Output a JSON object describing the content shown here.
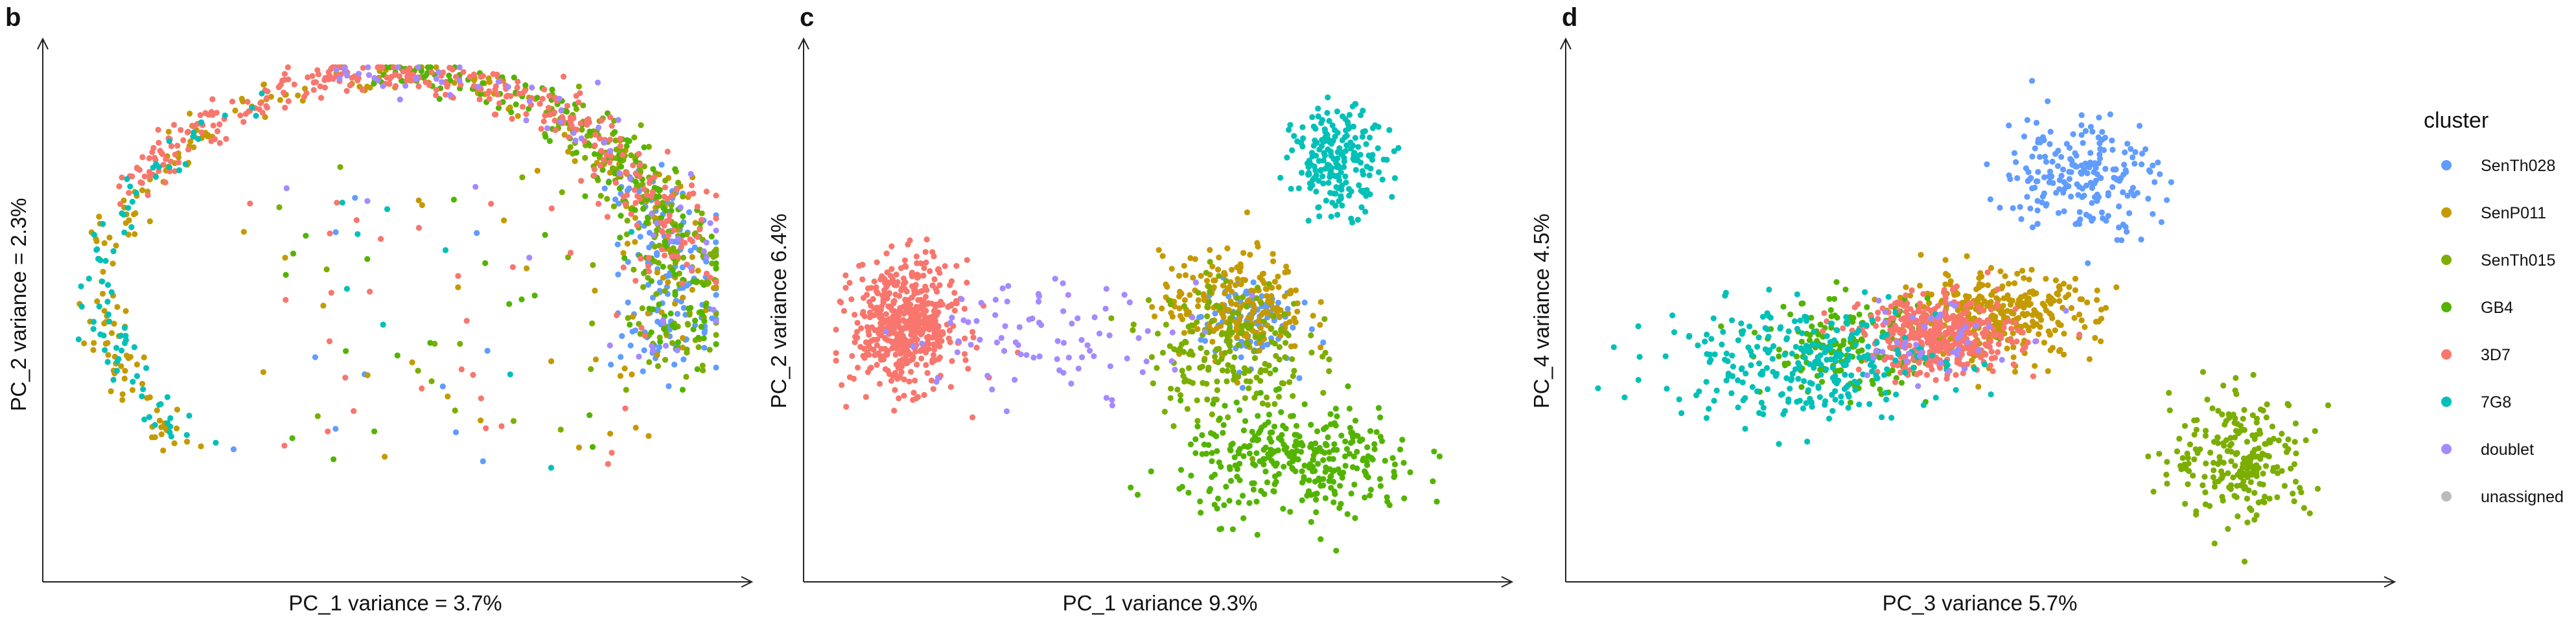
{
  "chart_data": [
    {
      "panel": "b",
      "type": "scatter",
      "xlabel": "PC_1 variance = 3.7%",
      "ylabel": "PC_2 variance = 2.3%",
      "xlim": [
        0,
        100
      ],
      "ylim": [
        0,
        100
      ],
      "shape": "arc",
      "series": [
        {
          "name": "SenTh028",
          "center": [
            88,
            60
          ],
          "spread": [
            5,
            9
          ],
          "n": 160
        },
        {
          "name": "SenP011",
          "center": [
            50,
            35
          ],
          "spread": [
            30,
            25
          ],
          "n": 260
        },
        {
          "name": "SenTh015",
          "center": [
            82,
            55
          ],
          "spread": [
            10,
            15
          ],
          "n": 220
        },
        {
          "name": "GB4",
          "center": [
            75,
            50
          ],
          "spread": [
            18,
            20
          ],
          "n": 200
        },
        {
          "name": "3D7",
          "center": [
            45,
            18
          ],
          "spread": [
            25,
            12
          ],
          "n": 380
        },
        {
          "name": "7G8",
          "center": [
            20,
            60
          ],
          "spread": [
            10,
            20
          ],
          "n": 90
        },
        {
          "name": "doublet",
          "center": [
            80,
            50
          ],
          "spread": [
            15,
            20
          ],
          "n": 70
        }
      ]
    },
    {
      "panel": "c",
      "type": "scatter",
      "xlabel": "PC_1 variance 9.3%",
      "ylabel": "PC_2 variance 6.4%",
      "xlim": [
        0,
        100
      ],
      "ylim": [
        0,
        100
      ],
      "series": [
        {
          "name": "SenTh028",
          "center": [
            63,
            49
          ],
          "spread": [
            3.5,
            4.5
          ],
          "n": 110
        },
        {
          "name": "SenP011",
          "center": [
            61,
            52
          ],
          "spread": [
            5.5,
            5
          ],
          "n": 230
        },
        {
          "name": "SenTh015",
          "center": [
            60,
            43
          ],
          "spread": [
            6,
            7
          ],
          "n": 190
        },
        {
          "name": "GB4",
          "center": [
            71,
            21
          ],
          "spread": [
            9,
            5.5
          ],
          "n": 330
        },
        {
          "name": "3D7",
          "center": [
            11,
            48
          ],
          "spread": [
            4,
            6
          ],
          "n": 530
        },
        {
          "name": "7G8",
          "center": [
            77,
            80
          ],
          "spread": [
            3.5,
            5
          ],
          "n": 210
        },
        {
          "name": "doublet",
          "center": [
            34,
            46
          ],
          "spread": [
            12,
            5.5
          ],
          "n": 85
        }
      ]
    },
    {
      "panel": "d",
      "type": "scatter",
      "xlabel": "PC_3 variance 5.7%",
      "ylabel": "PC_4 variance 4.5%",
      "xlim": [
        0,
        100
      ],
      "ylim": [
        0,
        100
      ],
      "series": [
        {
          "name": "SenTh028",
          "center": [
            63,
            78
          ],
          "spread": [
            5,
            6
          ],
          "n": 210
        },
        {
          "name": "SenP011",
          "center": [
            52,
            50
          ],
          "spread": [
            6.5,
            4.2
          ],
          "n": 340
        },
        {
          "name": "SenTh015",
          "center": [
            84,
            22
          ],
          "spread": [
            4.5,
            6
          ],
          "n": 230
        },
        {
          "name": "GB4",
          "center": [
            33,
            44
          ],
          "spread": [
            5.5,
            4.5
          ],
          "n": 170
        },
        {
          "name": "3D7",
          "center": [
            45,
            46
          ],
          "spread": [
            5,
            3.8
          ],
          "n": 420
        },
        {
          "name": "7G8",
          "center": [
            27,
            41
          ],
          "spread": [
            9,
            5.5
          ],
          "n": 280
        },
        {
          "name": "doublet",
          "center": [
            43,
            45
          ],
          "spread": [
            5.5,
            5
          ],
          "n": 40
        }
      ]
    }
  ],
  "legend": {
    "title": "cluster",
    "items": [
      {
        "label": "SenTh028",
        "color": "#619CFF"
      },
      {
        "label": "SenP011",
        "color": "#C49A00"
      },
      {
        "label": "SenTh015",
        "color": "#7CAE00"
      },
      {
        "label": "GB4",
        "color": "#53B400"
      },
      {
        "label": "3D7",
        "color": "#F8766D"
      },
      {
        "label": "7G8",
        "color": "#00C0B8"
      },
      {
        "label": "doublet",
        "color": "#A58AFF"
      },
      {
        "label": "unassigned",
        "color": "#BBBBBB"
      }
    ]
  }
}
